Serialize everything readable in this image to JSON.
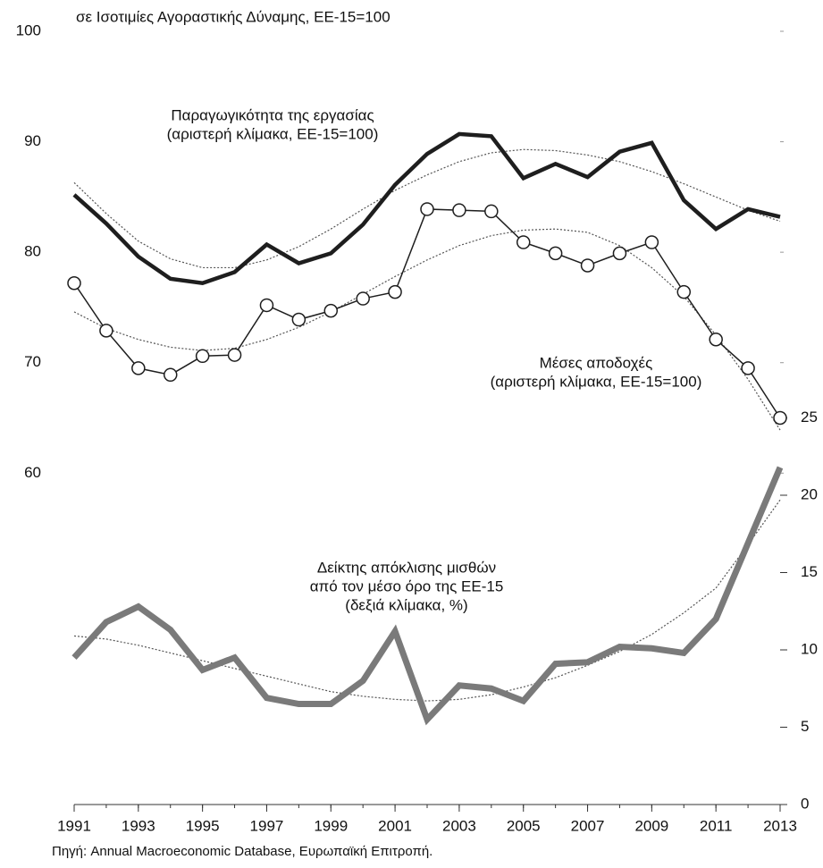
{
  "chart_data": {
    "type": "line",
    "title": "σε Ισοτιμίες Αγοραστικής Δύναμης, ΕΕ-15=100",
    "source": "Πηγή: Annual Macroeconomic Database, Ευρωπαϊκή Επιτροπή.",
    "x": [
      1991,
      1992,
      1993,
      1994,
      1995,
      1996,
      1997,
      1998,
      1999,
      2000,
      2001,
      2002,
      2003,
      2004,
      2005,
      2006,
      2007,
      2008,
      2009,
      2010,
      2011,
      2012,
      2013
    ],
    "xlim": [
      1991,
      2013
    ],
    "xticks": [
      1991,
      1993,
      1995,
      1997,
      1999,
      2001,
      2003,
      2005,
      2007,
      2009,
      2011,
      2013
    ],
    "ylim": [
      30,
      100
    ],
    "yticks": [
      60,
      70,
      80,
      90,
      100
    ],
    "y2lim": [
      0,
      50
    ],
    "y2ticks": [
      0,
      5,
      10,
      15,
      20,
      25
    ],
    "annotations": [
      [
        "Παραγωγικότητα της εργασίας",
        "(αριστερή κλίμακα, ΕΕ-15=100)"
      ],
      [
        "Μέσες αποδοχές",
        "(αριστερή κλίμακα, ΕΕ-15=100)"
      ],
      [
        "Δείκτης απόκλισης μισθών",
        "από τον μέσο όρο της ΕΕ-15",
        "(δεξιά κλίμακα, %)"
      ]
    ],
    "series": [
      {
        "color": "#1e1e1e",
        "style": "thick",
        "values": [
          85.2,
          82.6,
          79.6,
          77.6,
          77.2,
          78.2,
          80.7,
          79.0,
          79.9,
          82.5,
          86.1,
          88.9,
          90.7,
          90.5,
          86.7,
          88.0,
          86.8,
          89.1,
          89.9,
          84.7,
          82.1,
          83.9,
          83.2
        ]
      },
      {
        "color": "#1e1e1e",
        "style": "markers",
        "values": [
          77.2,
          72.9,
          69.5,
          68.9,
          70.6,
          70.7,
          75.2,
          73.9,
          74.7,
          75.8,
          76.4,
          83.9,
          83.8,
          83.7,
          80.9,
          79.9,
          78.8,
          79.9,
          80.9,
          76.4,
          72.1,
          69.5,
          65.0
        ]
      },
      {
        "color": "#7a7a7a",
        "style": "wide",
        "axis": "y2",
        "values": [
          9.5,
          11.8,
          12.8,
          11.3,
          8.7,
          9.5,
          6.9,
          6.5,
          6.5,
          8.0,
          11.2,
          5.5,
          7.7,
          7.5,
          6.7,
          9.1,
          9.2,
          10.2,
          10.1,
          9.8,
          12.0,
          16.9,
          21.8
        ]
      },
      {
        "color": "#555555",
        "style": "dotted",
        "values": [
          86.3,
          83.5,
          81.0,
          79.4,
          78.6,
          78.6,
          79.3,
          80.5,
          82.1,
          83.9,
          85.6,
          87.0,
          88.2,
          89.0,
          89.3,
          89.2,
          88.8,
          88.2,
          87.3,
          86.2,
          85.0,
          83.8,
          82.8
        ]
      },
      {
        "color": "#555555",
        "style": "dotted",
        "values": [
          74.6,
          73.1,
          72.1,
          71.4,
          71.1,
          71.3,
          72.1,
          73.2,
          74.6,
          76.2,
          77.8,
          79.3,
          80.6,
          81.5,
          82.0,
          82.1,
          81.8,
          80.6,
          78.6,
          76.0,
          72.5,
          68.5,
          63.9
        ]
      },
      {
        "color": "#555555",
        "style": "dotted",
        "axis": "y2",
        "values": [
          10.9,
          10.7,
          10.3,
          9.8,
          9.3,
          8.8,
          8.3,
          7.8,
          7.3,
          7.0,
          6.8,
          6.7,
          6.8,
          7.1,
          7.6,
          8.2,
          9.0,
          9.9,
          11.0,
          12.4,
          14.0,
          16.8,
          19.7
        ]
      }
    ]
  }
}
